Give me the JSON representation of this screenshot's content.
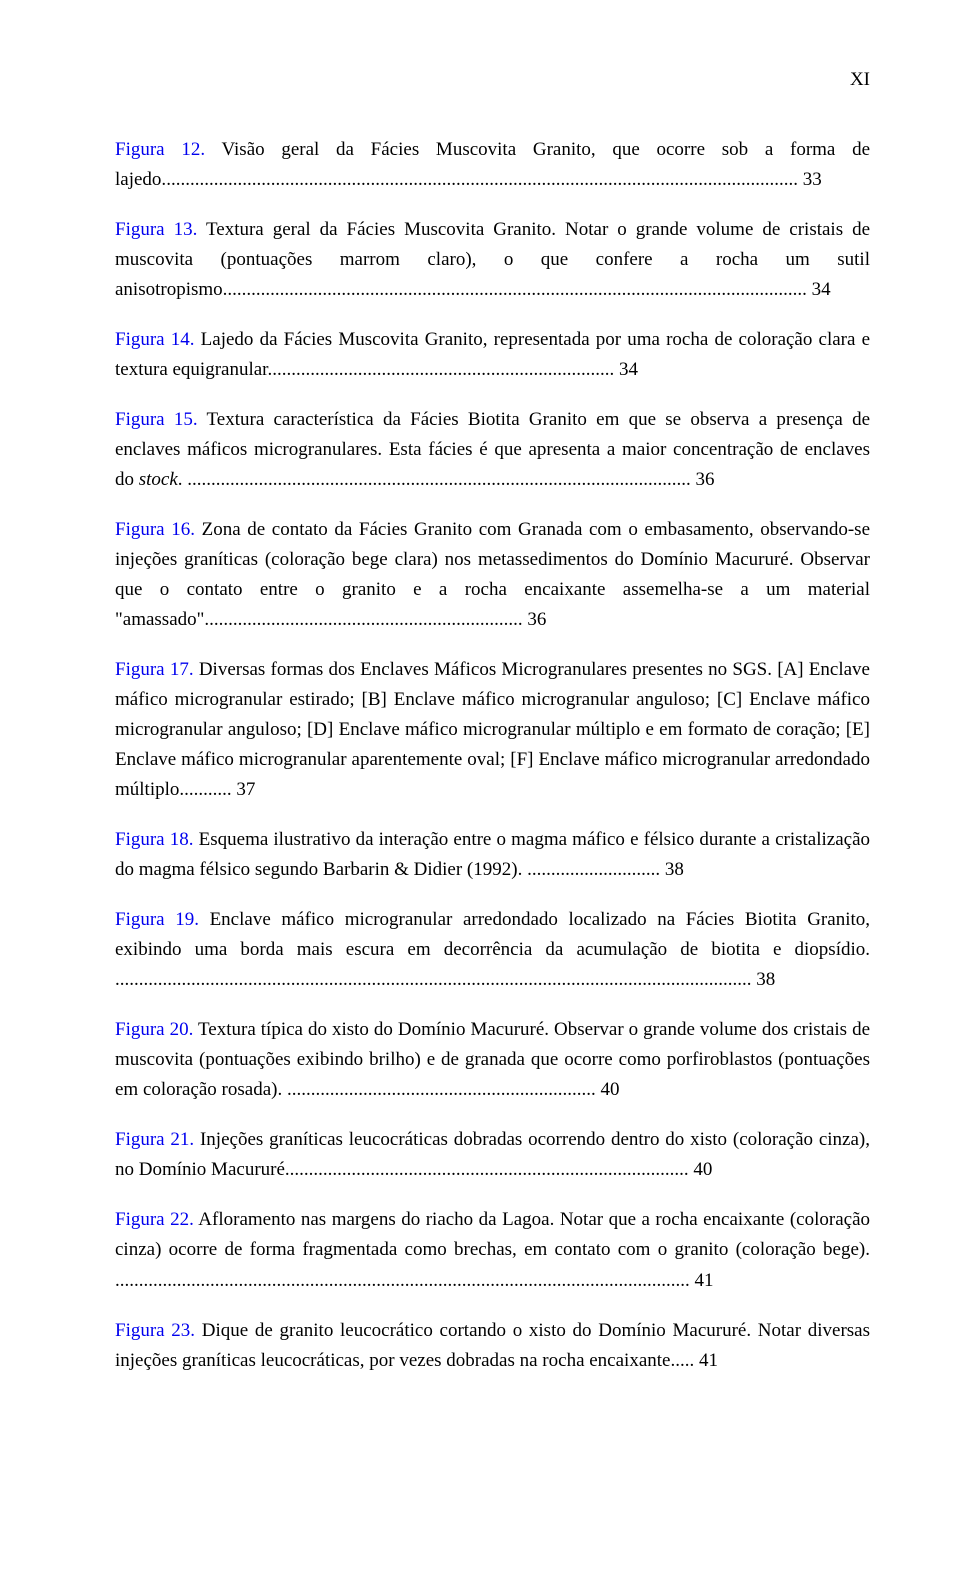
{
  "page_number": "XI",
  "entries": [
    {
      "label": "Figura 12.",
      "text": " Visão geral da Fácies Muscovita Granito, que ocorre sob a forma de lajedo.",
      "dots": ".....................................................................................................................................",
      "page": " 33"
    },
    {
      "label": "Figura 13.",
      "text": " Textura geral da Fácies Muscovita Granito. Notar o grande volume de cristais de muscovita (pontuações marrom claro), o que confere a rocha um sutil anisotropismo.",
      "dots": "..........................................................................................................................",
      "page": " 34"
    },
    {
      "label": "Figura 14.",
      "text": " Lajedo da Fácies Muscovita Granito, representada por uma rocha de coloração clara e textura equigranular.",
      "dots": "........................................................................",
      "page": " 34"
    },
    {
      "label": "Figura 15.",
      "text": " Textura característica da Fácies Biotita Granito em que se observa a presença de enclaves máficos microgranulares. Esta fácies é que apresenta a maior concentração de enclaves do ",
      "italic": "stock",
      "after": ". ",
      "dots": "..........................................................................................................",
      "page": " 36"
    },
    {
      "label": "Figura 16.",
      "text": " Zona de contato da Fácies Granito com Granada com o embasamento, observando-se injeções graníticas (coloração bege clara) nos metassedimentos do Domínio Macururé. Observar que o contato entre o granito e a rocha encaixante assemelha-se a um material \"amassado\".",
      "dots": "..................................................................",
      "page": " 36"
    },
    {
      "label": "Figura 17.",
      "text": " Diversas formas dos Enclaves Máficos Microgranulares presentes no SGS. [A] Enclave máfico microgranular estirado; [B] Enclave máfico microgranular anguloso; [C] Enclave máfico microgranular anguloso; [D] Enclave máfico microgranular múltiplo e em formato de coração; [E] Enclave máfico microgranular aparentemente oval; [F] Enclave máfico microgranular arredondado múltiplo.",
      "dots": "..........",
      "page": " 37"
    },
    {
      "label": "Figura 18.",
      "text": " Esquema ilustrativo da interação entre o magma máfico e félsico durante a cristalização do magma félsico segundo Barbarin & Didier (1992). ",
      "dots": "............................",
      "page": " 38"
    },
    {
      "label": "Figura 19.",
      "text": " Enclave máfico microgranular arredondado localizado na Fácies Biotita Granito, exibindo uma borda mais escura em decorrência da acumulação de biotita e diopsídio. ",
      "dots": "......................................................................................................................................",
      "page": " 38"
    },
    {
      "label": "Figura 20.",
      "text": " Textura típica do xisto do Domínio Macururé. Observar o grande volume dos cristais de muscovita (pontuações exibindo brilho) e de granada que ocorre como porfiroblastos (pontuações em coloração rosada). ",
      "dots": ".................................................................",
      "page": " 40"
    },
    {
      "label": "Figura 21.",
      "text": " Injeções graníticas leucocráticas dobradas ocorrendo dentro do xisto (coloração cinza), no Domínio Macururé.",
      "dots": "....................................................................................",
      "page": " 40"
    },
    {
      "label": "Figura 22.",
      "text": " Afloramento nas margens do riacho da Lagoa. Notar que a rocha encaixante (coloração cinza) ocorre de forma fragmentada como brechas, em contato com o granito (coloração bege). ",
      "dots": ".........................................................................................................................",
      "page": " 41"
    },
    {
      "label": "Figura 23.",
      "text": " Dique de granito leucocrático cortando o xisto do Domínio Macururé. Notar diversas injeções graníticas leucocráticas, por vezes dobradas na rocha encaixante.",
      "dots": "....",
      "page": " 41"
    }
  ]
}
